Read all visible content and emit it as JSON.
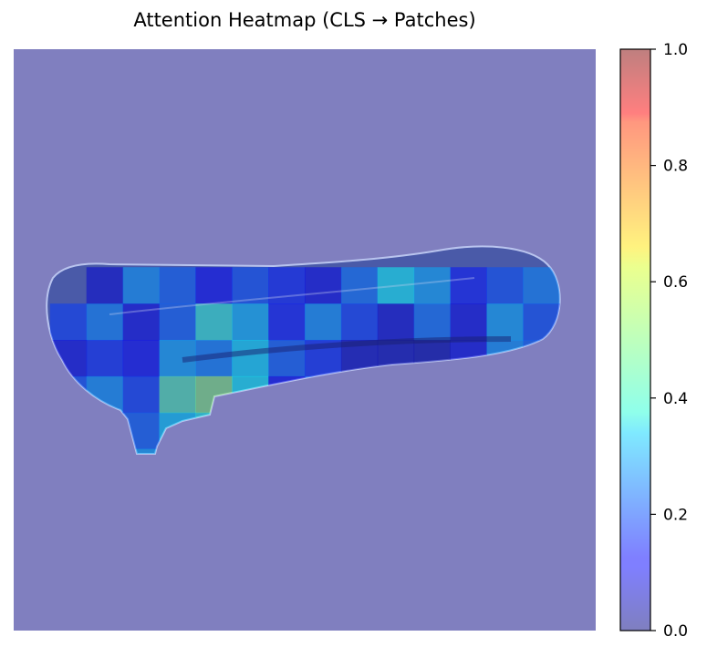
{
  "chart_data": {
    "type": "heatmap",
    "title": "Attention Heatmap (CLS → Patches)",
    "xlabel": "",
    "ylabel": "",
    "axes_visible": false,
    "grid": false,
    "background_value": 0.0,
    "patch_grid": {
      "rows": 16,
      "cols": 16
    },
    "colormap": "jet",
    "overlay_alpha": 0.5,
    "colorbar": {
      "position": "right",
      "range": [
        0.0,
        1.0
      ],
      "ticks": [
        0.0,
        0.2,
        0.4,
        0.6,
        0.8,
        1.0
      ],
      "tick_labels": [
        "0.0",
        "0.2",
        "0.4",
        "0.6",
        "0.8",
        "1.0"
      ]
    },
    "cells": [
      {
        "row": 6,
        "col": 2,
        "value": 0.08
      },
      {
        "row": 6,
        "col": 3,
        "value": 0.28
      },
      {
        "row": 6,
        "col": 4,
        "value": 0.22
      },
      {
        "row": 6,
        "col": 5,
        "value": 0.12
      },
      {
        "row": 6,
        "col": 6,
        "value": 0.2
      },
      {
        "row": 6,
        "col": 7,
        "value": 0.15
      },
      {
        "row": 6,
        "col": 8,
        "value": 0.1
      },
      {
        "row": 6,
        "col": 9,
        "value": 0.24
      },
      {
        "row": 6,
        "col": 10,
        "value": 0.38
      },
      {
        "row": 6,
        "col": 11,
        "value": 0.3
      },
      {
        "row": 6,
        "col": 12,
        "value": 0.14
      },
      {
        "row": 6,
        "col": 13,
        "value": 0.2
      },
      {
        "row": 6,
        "col": 14,
        "value": 0.26
      },
      {
        "row": 7,
        "col": 1,
        "value": 0.18
      },
      {
        "row": 7,
        "col": 2,
        "value": 0.26
      },
      {
        "row": 7,
        "col": 3,
        "value": 0.1
      },
      {
        "row": 7,
        "col": 4,
        "value": 0.22
      },
      {
        "row": 7,
        "col": 5,
        "value": 0.42
      },
      {
        "row": 7,
        "col": 6,
        "value": 0.32
      },
      {
        "row": 7,
        "col": 7,
        "value": 0.14
      },
      {
        "row": 7,
        "col": 8,
        "value": 0.28
      },
      {
        "row": 7,
        "col": 9,
        "value": 0.18
      },
      {
        "row": 7,
        "col": 10,
        "value": 0.08
      },
      {
        "row": 7,
        "col": 11,
        "value": 0.24
      },
      {
        "row": 7,
        "col": 12,
        "value": 0.1
      },
      {
        "row": 7,
        "col": 13,
        "value": 0.3
      },
      {
        "row": 7,
        "col": 14,
        "value": 0.2
      },
      {
        "row": 7,
        "col": 15,
        "value": 0.12
      },
      {
        "row": 8,
        "col": 1,
        "value": 0.1
      },
      {
        "row": 8,
        "col": 2,
        "value": 0.16
      },
      {
        "row": 8,
        "col": 3,
        "value": 0.12
      },
      {
        "row": 8,
        "col": 4,
        "value": 0.3
      },
      {
        "row": 8,
        "col": 5,
        "value": 0.26
      },
      {
        "row": 8,
        "col": 6,
        "value": 0.36
      },
      {
        "row": 8,
        "col": 7,
        "value": 0.22
      },
      {
        "row": 8,
        "col": 8,
        "value": 0.16
      },
      {
        "row": 8,
        "col": 9,
        "value": 0.06
      },
      {
        "row": 8,
        "col": 10,
        "value": 0.05
      },
      {
        "row": 8,
        "col": 11,
        "value": 0.04
      },
      {
        "row": 8,
        "col": 12,
        "value": 0.1
      },
      {
        "row": 8,
        "col": 13,
        "value": 0.28
      },
      {
        "row": 8,
        "col": 14,
        "value": 0.22
      },
      {
        "row": 9,
        "col": 1,
        "value": 0.2
      },
      {
        "row": 9,
        "col": 2,
        "value": 0.28
      },
      {
        "row": 9,
        "col": 3,
        "value": 0.18
      },
      {
        "row": 9,
        "col": 4,
        "value": 0.46
      },
      {
        "row": 9,
        "col": 5,
        "value": 0.52
      },
      {
        "row": 9,
        "col": 6,
        "value": 0.38
      },
      {
        "row": 9,
        "col": 7,
        "value": 0.12
      },
      {
        "row": 9,
        "col": 8,
        "value": 0.22
      },
      {
        "row": 9,
        "col": 9,
        "value": 0.1
      },
      {
        "row": 9,
        "col": 10,
        "value": 0.14
      },
      {
        "row": 9,
        "col": 11,
        "value": 0.06
      },
      {
        "row": 9,
        "col": 12,
        "value": 0.3
      },
      {
        "row": 9,
        "col": 13,
        "value": 0.18
      },
      {
        "row": 9,
        "col": 14,
        "value": 0.08
      },
      {
        "row": 10,
        "col": 2,
        "value": 0.12
      },
      {
        "row": 10,
        "col": 3,
        "value": 0.22
      },
      {
        "row": 10,
        "col": 4,
        "value": 0.34
      },
      {
        "row": 10,
        "col": 5,
        "value": 0.4
      },
      {
        "row": 10,
        "col": 6,
        "value": 0.28
      },
      {
        "row": 10,
        "col": 7,
        "value": 0.32
      },
      {
        "row": 10,
        "col": 8,
        "value": 0.18
      },
      {
        "row": 10,
        "col": 9,
        "value": 0.2
      },
      {
        "row": 10,
        "col": 10,
        "value": 0.34
      },
      {
        "row": 10,
        "col": 11,
        "value": 0.26
      },
      {
        "row": 10,
        "col": 12,
        "value": 0.16
      },
      {
        "row": 11,
        "col": 2,
        "value": 0.1
      },
      {
        "row": 11,
        "col": 3,
        "value": 0.3
      },
      {
        "row": 11,
        "col": 4,
        "value": 0.24
      },
      {
        "row": 11,
        "col": 5,
        "value": 0.36
      },
      {
        "row": 11,
        "col": 6,
        "value": 0.2
      },
      {
        "row": 11,
        "col": 7,
        "value": 0.28
      },
      {
        "row": 12,
        "col": 3,
        "value": 0.18
      },
      {
        "row": 12,
        "col": 4,
        "value": 0.55
      },
      {
        "row": 12,
        "col": 5,
        "value": 0.14
      },
      {
        "row": 13,
        "col": 3,
        "value": 0.08
      },
      {
        "row": 13,
        "col": 4,
        "value": 0.2
      },
      {
        "row": 14,
        "col": 3,
        "value": 0.58
      }
    ]
  }
}
